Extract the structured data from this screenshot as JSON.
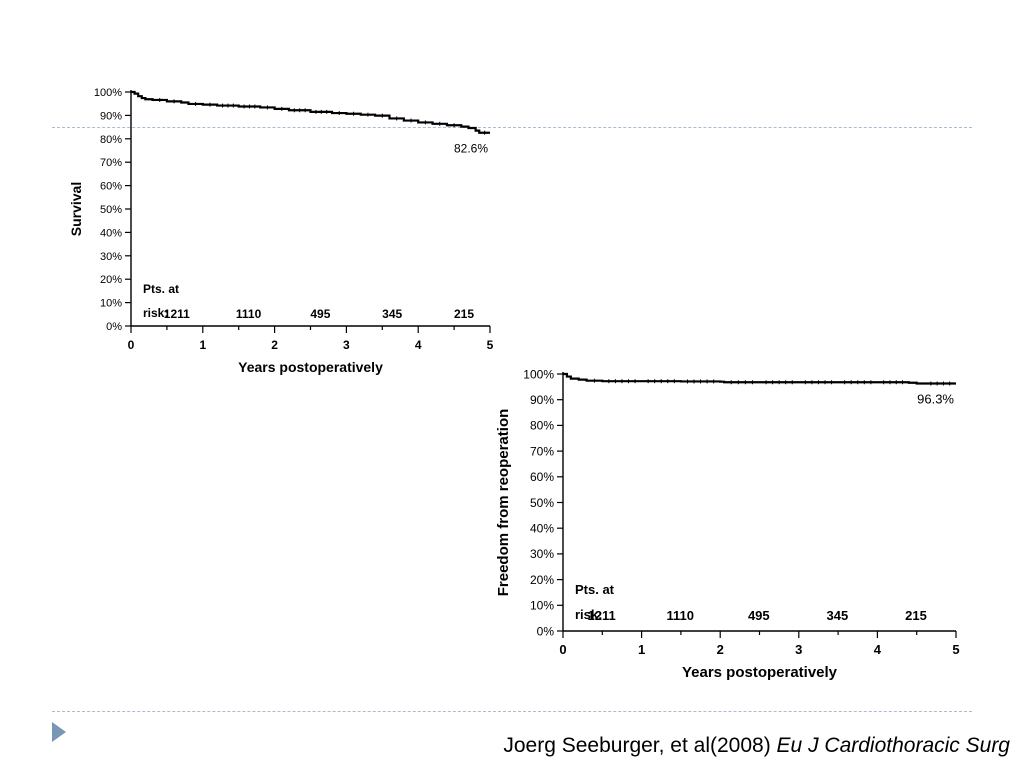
{
  "slide": {
    "accent_color": "#7897b7",
    "rule_color": "#a9bcd0"
  },
  "citation": {
    "authors": "Joerg Seeburger, et al(2008)",
    "journal": "Eu J Cardiothoracic Surg"
  },
  "chart_data": [
    {
      "type": "line",
      "ylabel": "Survival",
      "xlabel": "Years postoperatively",
      "xlim": [
        0,
        5
      ],
      "ylim": [
        0,
        100
      ],
      "x_ticks": [
        "0",
        "1",
        "2",
        "3",
        "4",
        "5"
      ],
      "y_ticks": [
        "0%",
        "10%",
        "20%",
        "30%",
        "40%",
        "50%",
        "60%",
        "70%",
        "80%",
        "90%",
        "100%"
      ],
      "series": [
        {
          "x": [
            0,
            0.05,
            0.1,
            0.15,
            0.2,
            0.3,
            0.5,
            0.7,
            0.8,
            1.0,
            1.2,
            1.5,
            1.8,
            2.0,
            2.2,
            2.5,
            2.8,
            3.0,
            3.2,
            3.4,
            3.6,
            3.8,
            4.0,
            4.2,
            4.4,
            4.6,
            4.7,
            4.8,
            4.85,
            5.0
          ],
          "y": [
            100,
            99.3,
            98.2,
            97.4,
            96.9,
            96.6,
            96.0,
            95.5,
            94.9,
            94.6,
            94.2,
            93.8,
            93.4,
            92.8,
            92.2,
            91.5,
            91.0,
            90.7,
            90.3,
            89.9,
            88.7,
            87.8,
            87.0,
            86.4,
            85.8,
            85.2,
            84.6,
            83.5,
            82.6,
            82.6
          ]
        }
      ],
      "end_label": "82.6%",
      "risk_table": {
        "label_line1": "Pts. at",
        "label_line2": "risk:",
        "counts": [
          "1211",
          "1110",
          "495",
          "345",
          "215"
        ],
        "x_positions": [
          1,
          2,
          3,
          4,
          5
        ]
      },
      "grid": false
    },
    {
      "type": "line",
      "ylabel": "Freedom from reoperation",
      "xlabel": "Years postoperatively",
      "xlim": [
        0,
        5
      ],
      "ylim": [
        0,
        100
      ],
      "x_ticks": [
        "0",
        "1",
        "2",
        "3",
        "4",
        "5"
      ],
      "y_ticks": [
        "0%",
        "10%",
        "20%",
        "30%",
        "40%",
        "50%",
        "60%",
        "70%",
        "80%",
        "90%",
        "100%"
      ],
      "series": [
        {
          "x": [
            0,
            0.05,
            0.1,
            0.2,
            0.3,
            0.5,
            1.0,
            1.5,
            2.0,
            2.05,
            2.5,
            3.0,
            3.5,
            4.0,
            4.4,
            4.5,
            4.6,
            5.0
          ],
          "y": [
            100,
            99.0,
            98.2,
            97.8,
            97.4,
            97.2,
            97.2,
            97.1,
            97.0,
            96.8,
            96.8,
            96.8,
            96.8,
            96.8,
            96.6,
            96.3,
            96.3,
            96.3
          ]
        }
      ],
      "end_label": "96.3%",
      "risk_table": {
        "label_line1": "Pts. at",
        "label_line2": "risk:",
        "counts": [
          "1211",
          "1110",
          "495",
          "345",
          "215"
        ],
        "x_positions": [
          1,
          2,
          3,
          4,
          5
        ]
      },
      "grid": false
    }
  ]
}
